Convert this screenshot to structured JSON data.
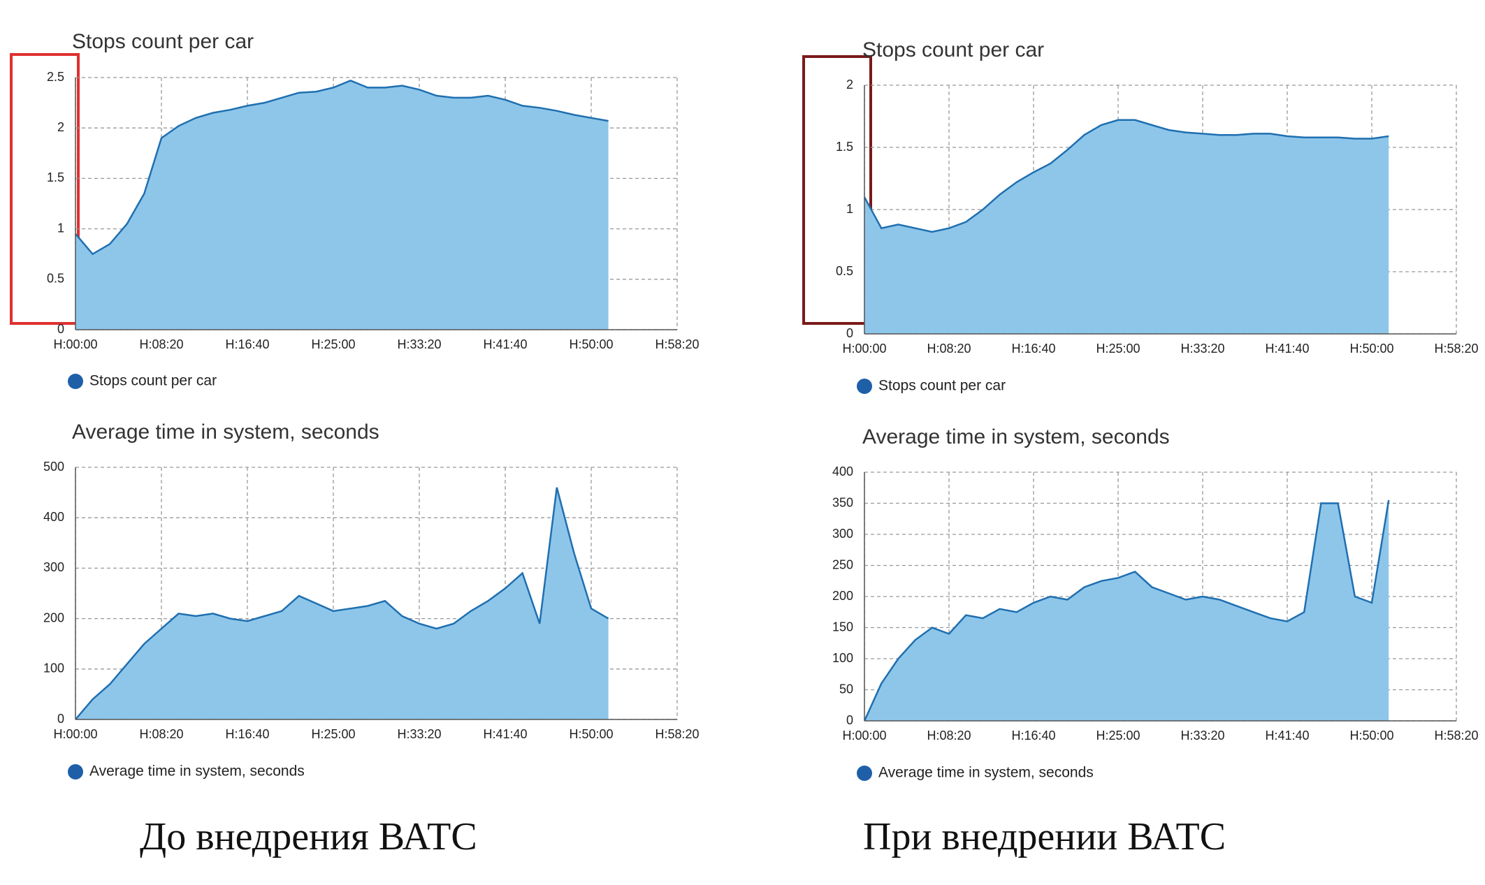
{
  "chart_data": [
    {
      "type": "area",
      "title": "Stops count per car",
      "x": [
        0,
        100,
        200,
        300,
        400,
        500,
        600,
        700,
        800,
        900,
        1000,
        1100,
        1200,
        1300,
        1400,
        1500,
        1600,
        1700,
        1800,
        1900,
        2000,
        2100,
        2200,
        2300,
        2400,
        2500,
        2600,
        2700,
        2800,
        2900,
        3000,
        3100
      ],
      "series": [
        {
          "name": "Stops count per car",
          "color": "#1f6fb0",
          "values": [
            0.95,
            0.75,
            0.85,
            1.05,
            1.35,
            1.9,
            2.02,
            2.1,
            2.15,
            2.18,
            2.22,
            2.25,
            2.3,
            2.35,
            2.36,
            2.4,
            2.47,
            2.4,
            2.4,
            2.42,
            2.38,
            2.32,
            2.3,
            2.3,
            2.32,
            2.28,
            2.22,
            2.2,
            2.17,
            2.13,
            2.1,
            2.07
          ]
        }
      ],
      "xlim": [
        0,
        3500
      ],
      "xticks": [
        {
          "value": 0,
          "label": "H:00:00"
        },
        {
          "value": 500,
          "label": "H:08:20"
        },
        {
          "value": 1000,
          "label": "H:16:40"
        },
        {
          "value": 1500,
          "label": "H:25:00"
        },
        {
          "value": 2000,
          "label": "H:33:20"
        },
        {
          "value": 2500,
          "label": "H:41:40"
        },
        {
          "value": 3000,
          "label": "H:50:00"
        },
        {
          "value": 3500,
          "label": "H:58:20"
        }
      ],
      "ylim": [
        0,
        2.5
      ],
      "yticks": [
        0,
        0.5,
        1,
        1.5,
        2,
        2.5
      ],
      "grid": true
    },
    {
      "type": "area",
      "title": "Average time in system, seconds",
      "x": [
        0,
        100,
        200,
        300,
        400,
        500,
        600,
        700,
        800,
        900,
        1000,
        1100,
        1200,
        1300,
        1400,
        1500,
        1600,
        1700,
        1800,
        1900,
        2000,
        2100,
        2200,
        2300,
        2400,
        2500,
        2600,
        2700,
        2800,
        2900,
        3000,
        3100
      ],
      "series": [
        {
          "name": "Average time in system, seconds",
          "color": "#1f6fb0",
          "values": [
            0,
            40,
            70,
            110,
            150,
            180,
            210,
            205,
            210,
            200,
            195,
            205,
            215,
            245,
            230,
            215,
            220,
            225,
            235,
            205,
            190,
            180,
            190,
            215,
            235,
            260,
            290,
            190,
            460,
            330,
            220,
            200
          ]
        }
      ],
      "xlim": [
        0,
        3500
      ],
      "xticks": [
        {
          "value": 0,
          "label": "H:00:00"
        },
        {
          "value": 500,
          "label": "H:08:20"
        },
        {
          "value": 1000,
          "label": "H:16:40"
        },
        {
          "value": 1500,
          "label": "H:25:00"
        },
        {
          "value": 2000,
          "label": "H:33:20"
        },
        {
          "value": 2500,
          "label": "H:41:40"
        },
        {
          "value": 3000,
          "label": "H:50:00"
        },
        {
          "value": 3500,
          "label": "H:58:20"
        }
      ],
      "ylim": [
        0,
        500
      ],
      "yticks": [
        0,
        100,
        200,
        300,
        400,
        500
      ],
      "grid": true
    },
    {
      "type": "area",
      "title": "Stops count per car",
      "x": [
        0,
        100,
        200,
        300,
        400,
        500,
        600,
        700,
        800,
        900,
        1000,
        1100,
        1200,
        1300,
        1400,
        1500,
        1600,
        1700,
        1800,
        1900,
        2000,
        2100,
        2200,
        2300,
        2400,
        2500,
        2600,
        2700,
        2800,
        2900,
        3000,
        3100
      ],
      "series": [
        {
          "name": "Stops count per car",
          "color": "#1f6fb0",
          "values": [
            1.1,
            0.85,
            0.88,
            0.85,
            0.82,
            0.85,
            0.9,
            1.0,
            1.12,
            1.22,
            1.3,
            1.37,
            1.48,
            1.6,
            1.68,
            1.72,
            1.72,
            1.68,
            1.64,
            1.62,
            1.61,
            1.6,
            1.6,
            1.61,
            1.61,
            1.59,
            1.58,
            1.58,
            1.58,
            1.57,
            1.57,
            1.59
          ]
        }
      ],
      "xlim": [
        0,
        3500
      ],
      "xticks": [
        {
          "value": 0,
          "label": "H:00:00"
        },
        {
          "value": 500,
          "label": "H:08:20"
        },
        {
          "value": 1000,
          "label": "H:16:40"
        },
        {
          "value": 1500,
          "label": "H:25:00"
        },
        {
          "value": 2000,
          "label": "H:33:20"
        },
        {
          "value": 2500,
          "label": "H:41:40"
        },
        {
          "value": 3000,
          "label": "H:50:00"
        },
        {
          "value": 3500,
          "label": "H:58:20"
        }
      ],
      "ylim": [
        0,
        2
      ],
      "yticks": [
        0,
        0.5,
        1,
        1.5,
        2
      ],
      "grid": true
    },
    {
      "type": "area",
      "title": "Average time in system, seconds",
      "x": [
        0,
        100,
        200,
        300,
        400,
        500,
        600,
        700,
        800,
        900,
        1000,
        1100,
        1200,
        1300,
        1400,
        1500,
        1600,
        1700,
        1800,
        1900,
        2000,
        2100,
        2200,
        2300,
        2400,
        2500,
        2600,
        2700,
        2800,
        2900,
        3000,
        3100
      ],
      "series": [
        {
          "name": "Average time in system, seconds",
          "color": "#1f6fb0",
          "values": [
            0,
            60,
            100,
            130,
            150,
            140,
            170,
            165,
            180,
            175,
            190,
            200,
            195,
            215,
            225,
            230,
            240,
            215,
            205,
            195,
            200,
            195,
            185,
            175,
            165,
            160,
            175,
            350,
            350,
            200,
            190,
            355
          ]
        }
      ],
      "xlim": [
        0,
        3500
      ],
      "xticks": [
        {
          "value": 0,
          "label": "H:00:00"
        },
        {
          "value": 500,
          "label": "H:08:20"
        },
        {
          "value": 1000,
          "label": "H:16:40"
        },
        {
          "value": 1500,
          "label": "H:25:00"
        },
        {
          "value": 2000,
          "label": "H:33:20"
        },
        {
          "value": 2500,
          "label": "H:41:40"
        },
        {
          "value": 3000,
          "label": "H:50:00"
        },
        {
          "value": 3500,
          "label": "H:58:20"
        }
      ],
      "ylim": [
        0,
        400
      ],
      "yticks": [
        0,
        50,
        100,
        150,
        200,
        250,
        300,
        350,
        400
      ],
      "grid": true
    }
  ],
  "captions": [
    "До внедрения ВАТС",
    "При внедрении ВАТС"
  ]
}
